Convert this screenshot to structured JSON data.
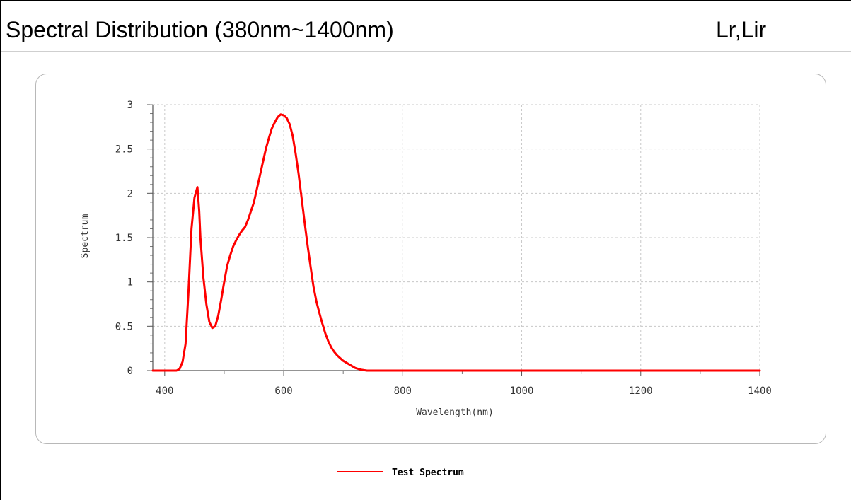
{
  "header": {
    "title": "Spectral Distribution (380nm~1400nm)",
    "subtitle": "Lr,Lir"
  },
  "chart_data": {
    "type": "line",
    "xlabel": "Wavelength(nm)",
    "ylabel": "Spectrum",
    "xlim": [
      380,
      1400
    ],
    "ylim": [
      0,
      3
    ],
    "xticks": [
      "400",
      "600",
      "800",
      "1000",
      "1200",
      "1400"
    ],
    "yticks": [
      "0",
      "0.5",
      "1",
      "1.5",
      "2",
      "2.5",
      "3"
    ],
    "grid": true,
    "legend_position": "bottom-center",
    "series": [
      {
        "name": "Test Spectrum",
        "color": "#ff0000",
        "x": [
          380,
          420,
          425,
          430,
          435,
          440,
          445,
          450,
          452,
          455,
          458,
          460,
          465,
          470,
          475,
          480,
          485,
          490,
          495,
          500,
          505,
          510,
          515,
          520,
          525,
          530,
          535,
          540,
          545,
          550,
          555,
          560,
          565,
          570,
          575,
          580,
          585,
          590,
          595,
          600,
          605,
          610,
          615,
          620,
          625,
          630,
          635,
          640,
          645,
          650,
          655,
          660,
          665,
          670,
          675,
          680,
          685,
          690,
          695,
          700,
          705,
          710,
          715,
          720,
          725,
          730,
          735,
          740,
          745,
          760,
          800,
          1000,
          1200,
          1400
        ],
        "y": [
          0,
          0,
          0.02,
          0.1,
          0.3,
          0.9,
          1.6,
          1.95,
          2.0,
          2.07,
          1.8,
          1.5,
          1.05,
          0.75,
          0.55,
          0.48,
          0.5,
          0.62,
          0.8,
          1.0,
          1.18,
          1.3,
          1.4,
          1.47,
          1.53,
          1.58,
          1.62,
          1.7,
          1.8,
          1.9,
          2.05,
          2.2,
          2.35,
          2.5,
          2.62,
          2.73,
          2.8,
          2.86,
          2.89,
          2.88,
          2.85,
          2.78,
          2.65,
          2.45,
          2.22,
          1.95,
          1.68,
          1.42,
          1.18,
          0.95,
          0.78,
          0.65,
          0.53,
          0.42,
          0.33,
          0.26,
          0.21,
          0.17,
          0.14,
          0.11,
          0.09,
          0.07,
          0.05,
          0.03,
          0.02,
          0.01,
          0.005,
          0,
          0,
          0,
          0,
          0,
          0,
          0
        ]
      }
    ]
  }
}
